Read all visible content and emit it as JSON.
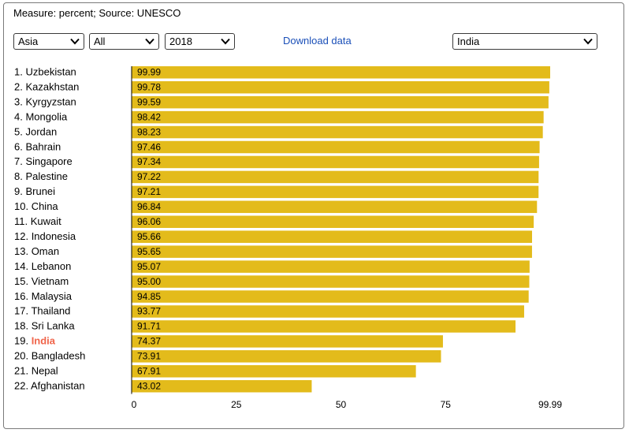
{
  "measure_label": "Measure: percent; Source: UNESCO",
  "controls": {
    "region": "Asia",
    "category": "All",
    "year": "2018",
    "download_label": "Download data",
    "country": "India"
  },
  "colors": {
    "bar": "#e3bb1b",
    "highlight": "#f0644a",
    "link": "#1a4fb8"
  },
  "chart_data": {
    "type": "bar",
    "orientation": "horizontal",
    "title": "",
    "xlabel": "",
    "ylabel": "",
    "xlim": [
      0,
      99.99
    ],
    "x_ticks": [
      "0",
      "25",
      "50",
      "75",
      "99.99"
    ],
    "x_tick_values": [
      0,
      25,
      50,
      75,
      99.99
    ],
    "highlight": "India",
    "categories": [
      "Uzbekistan",
      "Kazakhstan",
      "Kyrgyzstan",
      "Mongolia",
      "Jordan",
      "Bahrain",
      "Singapore",
      "Palestine",
      "Brunei",
      "China",
      "Kuwait",
      "Indonesia",
      "Oman",
      "Lebanon",
      "Vietnam",
      "Malaysia",
      "Thailand",
      "Sri Lanka",
      "India",
      "Bangladesh",
      "Nepal",
      "Afghanistan"
    ],
    "values": [
      99.99,
      99.78,
      99.59,
      98.42,
      98.23,
      97.46,
      97.34,
      97.22,
      97.21,
      96.84,
      96.06,
      95.66,
      95.65,
      95.07,
      95.0,
      94.85,
      93.77,
      91.71,
      74.37,
      73.91,
      67.91,
      43.02
    ],
    "value_labels": [
      "99.99",
      "99.78",
      "99.59",
      "98.42",
      "98.23",
      "97.46",
      "97.34",
      "97.22",
      "97.21",
      "96.84",
      "96.06",
      "95.66",
      "95.65",
      "95.07",
      "95.00",
      "94.85",
      "93.77",
      "91.71",
      "74.37",
      "73.91",
      "67.91",
      "43.02"
    ]
  }
}
